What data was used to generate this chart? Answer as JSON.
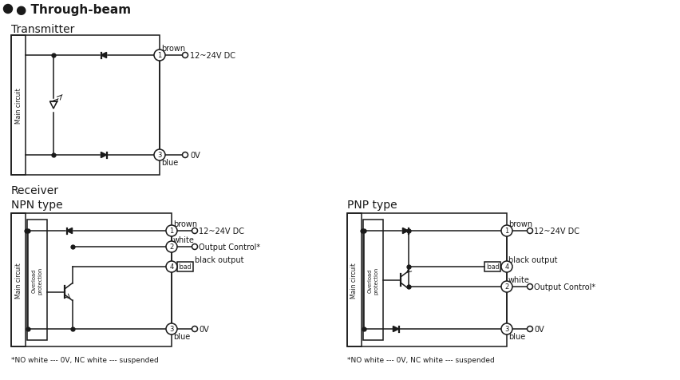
{
  "bg_color": "#ffffff",
  "lc": "#1a1a1a",
  "lw": 1.1,
  "title": "Through-beam",
  "transmitter_label": "Transmitter",
  "receiver_label": "Receiver",
  "npn_label": "NPN type",
  "pnp_label": "PNP type",
  "note": "*NO white --- 0V, NC white --- suspended",
  "fs_title": 11,
  "fs_section": 9,
  "fs_small": 7,
  "fs_pin": 6
}
